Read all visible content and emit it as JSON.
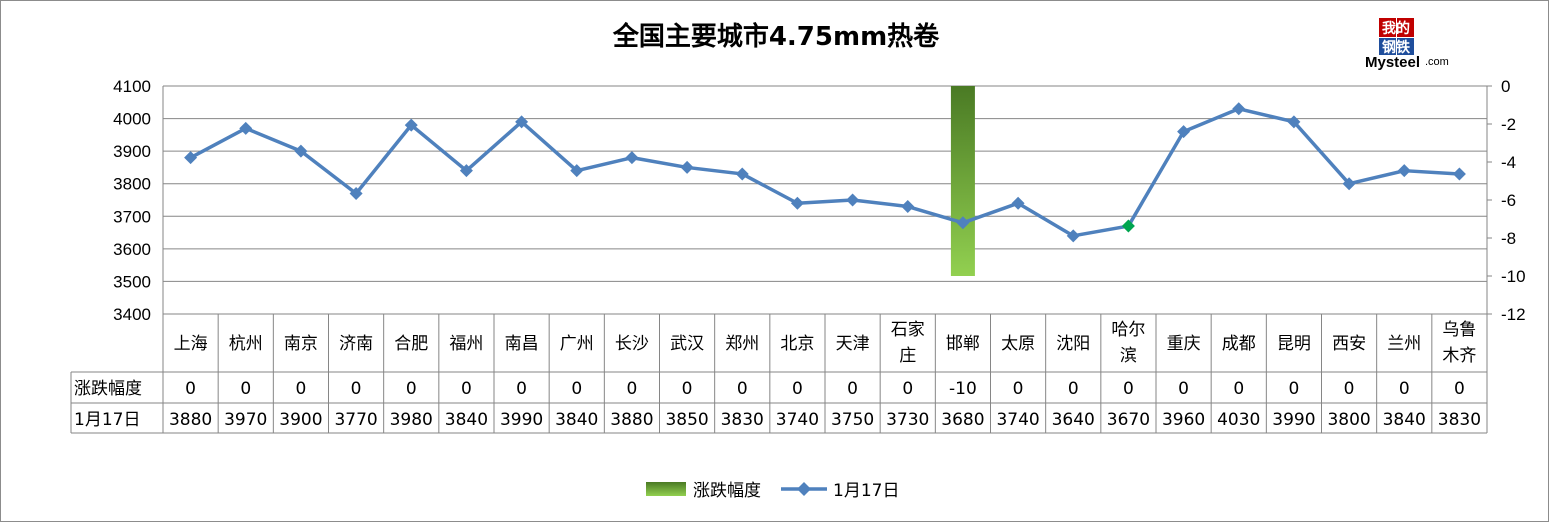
{
  "chart_data": {
    "type": "line",
    "title": "全国主要城市4.75mm热卷",
    "categories": [
      "上海",
      "杭州",
      "南京",
      "济南",
      "合肥",
      "福州",
      "南昌",
      "广州",
      "长沙",
      "武汉",
      "郑州",
      "北京",
      "天津",
      "石家庄",
      "邯郸",
      "太原",
      "沈阳",
      "哈尔滨",
      "重庆",
      "成都",
      "昆明",
      "西安",
      "兰州",
      "乌鲁木齐"
    ],
    "series": [
      {
        "name": "涨跌幅度",
        "type": "bar",
        "axis": "right",
        "values": [
          0,
          0,
          0,
          0,
          0,
          0,
          0,
          0,
          0,
          0,
          0,
          0,
          0,
          0,
          -10,
          0,
          0,
          0,
          0,
          0,
          0,
          0,
          0,
          0
        ]
      },
      {
        "name": "1月17日",
        "type": "line",
        "axis": "left",
        "values": [
          3880,
          3970,
          3900,
          3770,
          3980,
          3840,
          3990,
          3840,
          3880,
          3850,
          3830,
          3740,
          3750,
          3730,
          3680,
          3740,
          3640,
          3670,
          3960,
          4030,
          3990,
          3800,
          3840,
          3830
        ]
      }
    ],
    "y_left": {
      "min": 3400,
      "max": 4100,
      "step": 100,
      "ticks": [
        "3400",
        "3500",
        "3600",
        "3700",
        "3800",
        "3900",
        "4000",
        "4100"
      ]
    },
    "y_right": {
      "min": -12,
      "max": 0,
      "step": 2,
      "ticks": [
        "-12",
        "-10",
        "-8",
        "-6",
        "-4",
        "-2",
        "0"
      ]
    },
    "grid": true,
    "legend": "bottom",
    "colors": {
      "line": "#4F81BD",
      "bar_top": "#4A7A24",
      "bar_bottom": "#92D050",
      "highlight_marker": "#00A550",
      "grid": "#868686"
    }
  },
  "logo": {
    "cn_top": "我的",
    "cn_bottom": "钢铁",
    "en": "Mysteel",
    "suffix": ".com"
  }
}
